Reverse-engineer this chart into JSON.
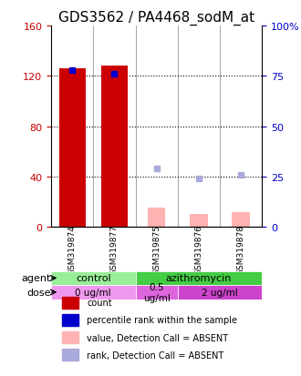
{
  "title": "GDS3562 / PA4468_sodM_at",
  "samples": [
    "GSM319874",
    "GSM319877",
    "GSM319875",
    "GSM319876",
    "GSM319878"
  ],
  "bar_counts": [
    126,
    128,
    null,
    null,
    null
  ],
  "bar_values_absent": [
    null,
    null,
    15,
    10,
    12
  ],
  "percentile_present": [
    78,
    76,
    null,
    null,
    null
  ],
  "percentile_absent": [
    null,
    null,
    29,
    24,
    26
  ],
  "count_color": "#cc0000",
  "value_absent_color": "#ffb3b3",
  "percentile_present_color": "#0000cc",
  "percentile_absent_color": "#aaaadd",
  "ylim_left": [
    0,
    160
  ],
  "ylim_right": [
    0,
    100
  ],
  "yticks_left": [
    0,
    40,
    80,
    120,
    160
  ],
  "yticks_right": [
    0,
    25,
    50,
    75,
    100
  ],
  "ytick_labels_right": [
    "0",
    "25",
    "50",
    "75",
    "100%"
  ],
  "agent_labels": [
    {
      "text": "control",
      "span": [
        0,
        2
      ],
      "color": "#99ee99"
    },
    {
      "text": "azithromycin",
      "span": [
        2,
        5
      ],
      "color": "#44cc44"
    }
  ],
  "dose_labels": [
    {
      "text": "0 ug/ml",
      "span": [
        0,
        2
      ],
      "color": "#ee99ee"
    },
    {
      "text": "0.5\nug/ml",
      "span": [
        2,
        3
      ],
      "color": "#dd66dd"
    },
    {
      "text": "2 ug/ml",
      "span": [
        3,
        5
      ],
      "color": "#cc44cc"
    }
  ],
  "legend_items": [
    {
      "color": "#cc0000",
      "label": "count"
    },
    {
      "color": "#0000cc",
      "label": "percentile rank within the sample"
    },
    {
      "color": "#ffb3b3",
      "label": "value, Detection Call = ABSENT"
    },
    {
      "color": "#aaaadd",
      "label": "rank, Detection Call = ABSENT"
    }
  ],
  "bar_width": 0.35,
  "grid_color": "#000000",
  "bg_color": "#ffffff",
  "sample_bg_color": "#cccccc"
}
